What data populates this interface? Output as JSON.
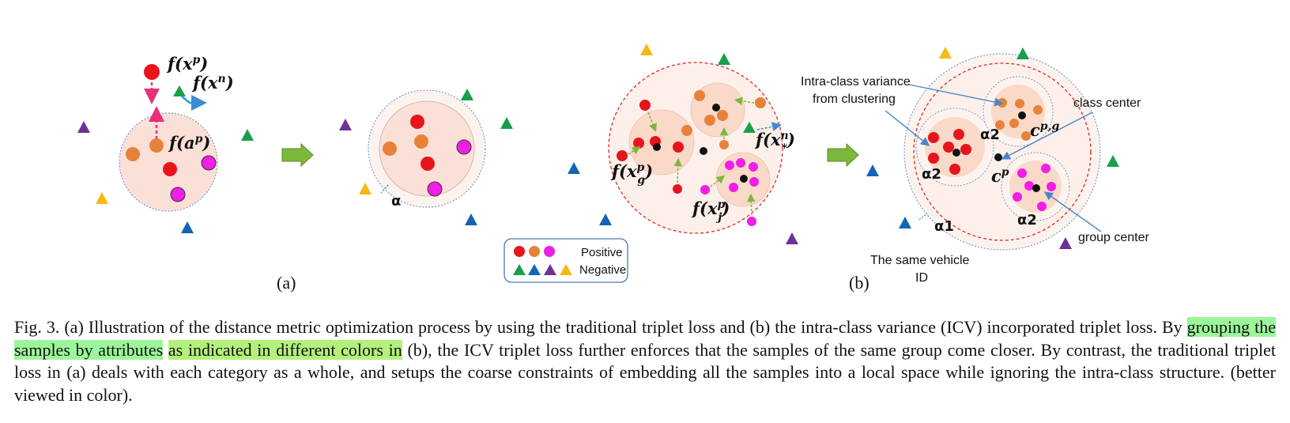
{
  "figure": {
    "panel_a": {
      "label": "(a)",
      "f_xp": "f(x",
      "f_xp_sup": "p",
      "f_xn": "f(x",
      "f_xn_sup": "n",
      "f_ap": "f(a",
      "f_ap_sup": "p",
      "close_paren": ")",
      "alpha": "α"
    },
    "panel_b": {
      "label": "(b)",
      "f_xg": "f(x",
      "f_xg_sup": "p",
      "f_xg_sub": "g",
      "f_xj": "f(x",
      "f_xj_sup": "p",
      "f_xj_sub": "j",
      "f_xstar": "f(x",
      "f_xstar_sup": "n",
      "f_xstar_sub": "*",
      "close_paren": ")",
      "intra_class_line1": "Intra-class variance",
      "intra_class_line2": "from clustering",
      "class_center": "class center",
      "group_center": "group center",
      "same_vehicle_line1": "The same vehicle",
      "same_vehicle_line2": "ID",
      "alpha1": "α1",
      "alpha2": "α2",
      "c_pg": "c",
      "c_pg_sup": "p,g",
      "c_p": "c",
      "c_p_sup": "p"
    },
    "legend": {
      "positive": "Positive",
      "negative": "Negative"
    },
    "colors": {
      "red": "#e8141c",
      "orange": "#e8823a",
      "magenta": "#f01ee6",
      "green_tri": "#1a9e4a",
      "blue_tri": "#1464b4",
      "purple_tri": "#6e3296",
      "yellow_tri": "#f5b814",
      "circle_fill": "#fbe0d8",
      "arrow_green": "#7cb83c"
    }
  },
  "caption": {
    "part1": "Fig. 3.     (a) Illustration of the distance metric optimization process by using the traditional triplet loss and (b) the intra-class variance (ICV) incorporated triplet loss. By ",
    "highlight1": "grouping the samples by attributes",
    "part2": " ",
    "highlight2": "as indicated in different colors in",
    "part3": " (b), the ICV triplet loss further enforces that the samples of the same group come closer. By contrast, the traditional triplet loss in (a) deals with each category as a whole, and setups the coarse constraints of embedding all the samples into a local space while ignoring the intra-class structure. (better viewed in color)."
  }
}
